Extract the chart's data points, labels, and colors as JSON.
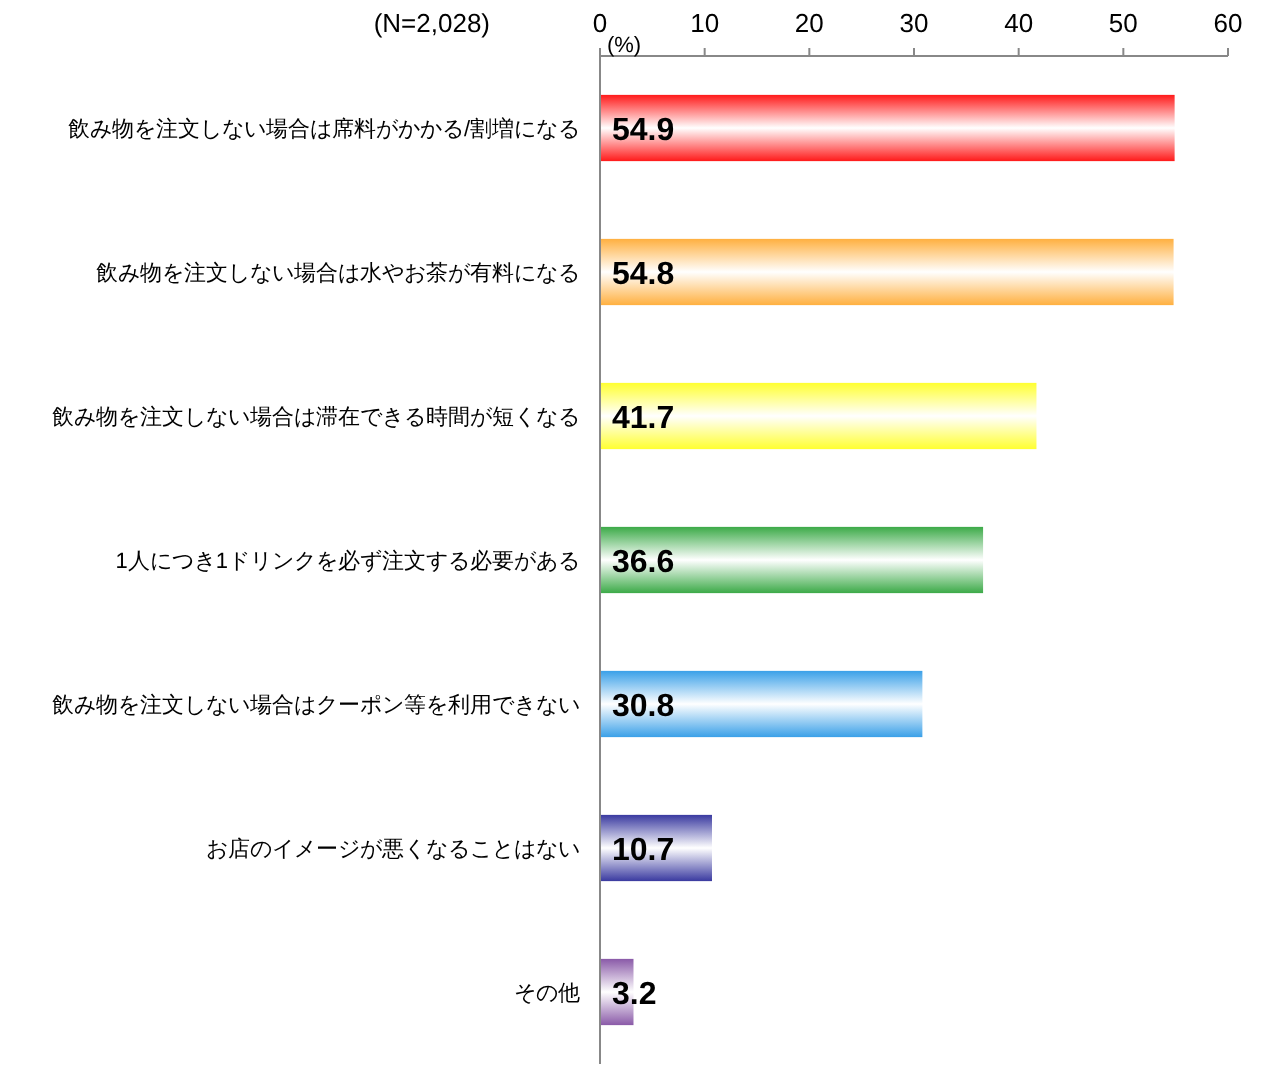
{
  "chart_data": {
    "type": "bar",
    "orientation": "horizontal",
    "xlabel": "(%)",
    "annotations": [
      "(N=2,028)"
    ],
    "categories": [
      "飲み物を注文しない場合は席料がかかる/割増になる",
      "飲み物を注文しない場合は水やお茶が有料になる",
      "飲み物を注文しない場合は滞在できる時間が短くなる",
      "1人につき1ドリンクを必ず注文する必要がある",
      "飲み物を注文しない場合はクーポン等を利用できない",
      "お店のイメージが悪くなることはない",
      "その他"
    ],
    "values": [
      54.9,
      54.8,
      41.7,
      36.6,
      30.8,
      10.7,
      3.2
    ],
    "colors": [
      "#ff1a1a",
      "#ffb040",
      "#ffff30",
      "#3caa48",
      "#3aa0e8",
      "#3a3aa0",
      "#8a5aa8"
    ],
    "xlim": [
      0,
      60
    ],
    "xticks": [
      0,
      10,
      20,
      30,
      40,
      50,
      60
    ],
    "data_labels": true,
    "grid": false
  }
}
